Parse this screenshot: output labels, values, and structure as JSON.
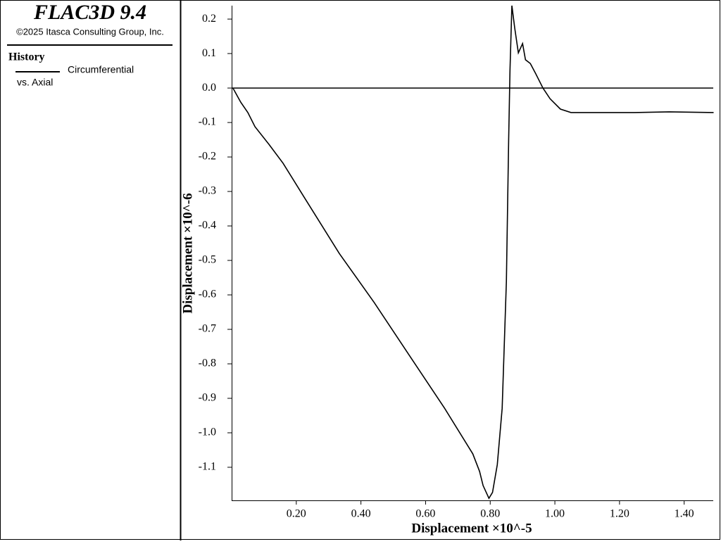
{
  "header": {
    "title": "FLAC3D 9.4",
    "copyright": "©2025 Itasca Consulting Group, Inc."
  },
  "chart_data": {
    "type": "line",
    "panel_title": "History",
    "x_series_label": "vs. Axial",
    "xlabel": "Displacement ×10^-5",
    "ylabel": "Displacement ×10^-6",
    "xlim": [
      0,
      1.49
    ],
    "ylim": [
      -1.196,
      0.239
    ],
    "xticks": [
      {
        "value": 0.2,
        "label": "0.20"
      },
      {
        "value": 0.4,
        "label": "0.40"
      },
      {
        "value": 0.6,
        "label": "0.60"
      },
      {
        "value": 0.8,
        "label": "0.80"
      },
      {
        "value": 1.0,
        "label": "1.00"
      },
      {
        "value": 1.2,
        "label": "1.20"
      },
      {
        "value": 1.4,
        "label": "1.40"
      }
    ],
    "yticks": [
      {
        "value": 0.2,
        "label": "0.2"
      },
      {
        "value": 0.1,
        "label": "0.1"
      },
      {
        "value": 0,
        "label": "0.0"
      },
      {
        "value": -0.1,
        "label": "-0.1"
      },
      {
        "value": -0.2,
        "label": "-0.2"
      },
      {
        "value": -0.3,
        "label": "-0.3"
      },
      {
        "value": -0.4,
        "label": "-0.4"
      },
      {
        "value": -0.5,
        "label": "-0.5"
      },
      {
        "value": -0.6,
        "label": "-0.6"
      },
      {
        "value": -0.7,
        "label": "-0.7"
      },
      {
        "value": -0.8,
        "label": "-0.8"
      },
      {
        "value": -0.9,
        "label": "-0.9"
      },
      {
        "value": -1.0,
        "label": "-1.0"
      },
      {
        "value": -1.1,
        "label": "-1.1"
      }
    ],
    "zero_line": true,
    "x": [
      0.004,
      0.028,
      0.05,
      0.072,
      0.115,
      0.159,
      0.224,
      0.333,
      0.441,
      0.55,
      0.659,
      0.746,
      0.767,
      0.778,
      0.796,
      0.807,
      0.822,
      0.837,
      0.85,
      0.857,
      0.861,
      0.867,
      0.876,
      0.887,
      0.9,
      0.909,
      0.924,
      0.941,
      0.963,
      0.985,
      1.017,
      1.05,
      1.137,
      1.246,
      1.354,
      1.491
    ],
    "series": [
      {
        "name": "Circumferential",
        "color": "#000000",
        "values": [
          0,
          -0.041,
          -0.071,
          -0.112,
          -0.163,
          -0.218,
          -0.316,
          -0.48,
          -0.622,
          -0.776,
          -0.929,
          -1.061,
          -1.112,
          -1.153,
          -1.19,
          -1.173,
          -1.092,
          -0.929,
          -0.561,
          -0.153,
          0.051,
          0.239,
          0.173,
          0.102,
          0.129,
          0.082,
          0.071,
          0.041,
          0,
          -0.031,
          -0.061,
          -0.071,
          -0.071,
          -0.071,
          -0.069,
          -0.071
        ]
      }
    ]
  }
}
